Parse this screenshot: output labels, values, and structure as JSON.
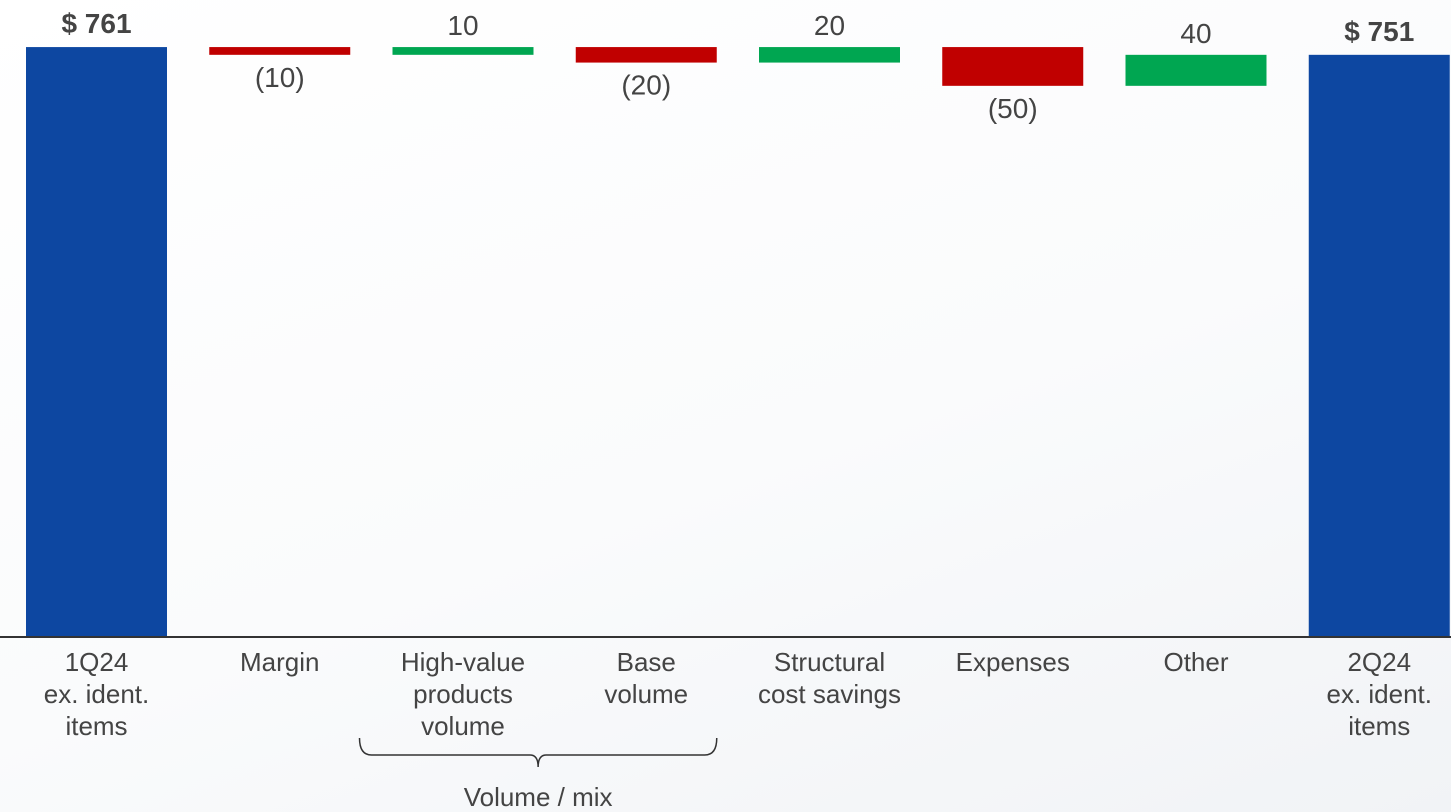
{
  "chart_data": {
    "type": "waterfall",
    "categories": [
      [
        "1Q24",
        "ex. ident.",
        "items"
      ],
      [
        "Margin"
      ],
      [
        "High-value",
        "products",
        "volume"
      ],
      [
        "Base",
        "volume"
      ],
      [
        "Structural",
        "cost savings"
      ],
      [
        "Expenses"
      ],
      [
        "Other"
      ],
      [
        "2Q24",
        "ex. ident.",
        "items"
      ]
    ],
    "values": [
      761,
      -10,
      10,
      -20,
      20,
      -50,
      40,
      751
    ],
    "value_labels": [
      "$ 761",
      "(10)",
      "10",
      "(20)",
      "20",
      "(50)",
      "40",
      "$ 751"
    ],
    "bar_kinds": [
      "total",
      "delta",
      "delta",
      "delta",
      "delta",
      "delta",
      "delta",
      "total"
    ],
    "group_bracket": {
      "label": "Volume / mix",
      "from_index": 2,
      "to_index": 3
    },
    "colors": {
      "total": "#0d47a1",
      "increase": "#00a651",
      "decrease": "#c00000",
      "axis": "#333333",
      "text": "#444444"
    }
  }
}
